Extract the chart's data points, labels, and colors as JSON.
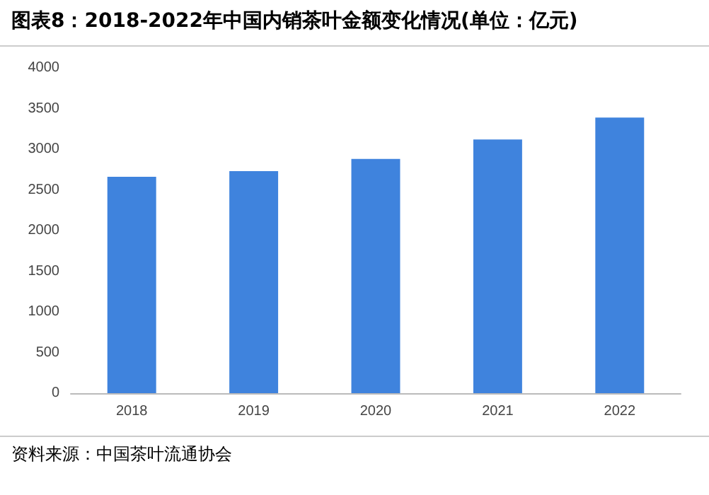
{
  "chart_data": {
    "type": "bar",
    "title": "图表8：2018-2022年中国内销茶叶金额变化情况(单位：亿元)",
    "categories": [
      "2018",
      "2019",
      "2020",
      "2021",
      "2022"
    ],
    "values": [
      2660,
      2730,
      2880,
      3120,
      3390
    ],
    "color": "#3f83dd",
    "ylim": [
      0,
      4000
    ],
    "yticks": [
      0,
      500,
      1000,
      1500,
      2000,
      2500,
      3000,
      3500,
      4000
    ],
    "grid": false,
    "annotations": [
      "资料来源：中国茶叶流通协会"
    ]
  }
}
